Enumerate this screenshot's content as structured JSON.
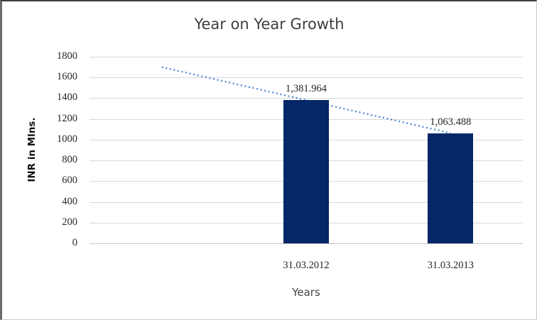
{
  "chart_data": {
    "type": "bar",
    "title": "Year on Year Growth",
    "xlabel": "Years",
    "ylabel": "INR in Mlns.",
    "categories": [
      "31.03.2012",
      "31.03.2013"
    ],
    "values": [
      1381.964,
      1063.488
    ],
    "value_labels": [
      "1,381.964",
      "1,063.488"
    ],
    "ylim": [
      0,
      1800
    ],
    "yticks": [
      0,
      200,
      400,
      600,
      800,
      1000,
      1200,
      1400,
      1600,
      1800
    ],
    "grid": true,
    "legend": "none",
    "bar_color": "#032767",
    "text_color": "#262626",
    "title_color": "#3f3f3f",
    "gridline_color": "#d9d9d9",
    "category_slots": 3,
    "bar_slots": [
      1,
      2
    ],
    "trendline": {
      "style": "dotted",
      "color": "#4d8ed3",
      "description": "linear trendline through bar tops extended one empty category slot to the left",
      "start": {
        "slot": 0,
        "value": 1700.4
      },
      "end": {
        "slot": 2,
        "value": 1063.488
      }
    }
  }
}
